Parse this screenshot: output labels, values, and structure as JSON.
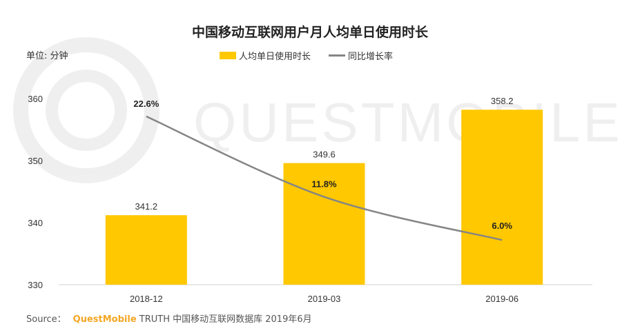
{
  "chart_data": {
    "type": "bar+line",
    "title": "中国移动互联网用户月人均单日使用时长",
    "ylabel": "单位: 分钟",
    "categories": [
      "2018-12",
      "2019-03",
      "2019-06"
    ],
    "ylim": [
      330,
      360
    ],
    "yticks": [
      330,
      340,
      350,
      360
    ],
    "series": [
      {
        "name": "人均单日使用时长",
        "type": "bar",
        "color": "#FFC800",
        "values": [
          341.2,
          349.6,
          358.2
        ],
        "labels": [
          "341.2",
          "349.6",
          "358.2"
        ]
      },
      {
        "name": "同比增长率",
        "type": "line",
        "color": "#858585",
        "axis": "secondary",
        "values": [
          22.6,
          11.8,
          6.0
        ],
        "labels": [
          "22.6%",
          "11.8%",
          "6.0%"
        ]
      }
    ],
    "secondary_ylim": [
      0,
      25
    ],
    "legend": "top-center",
    "grid": false
  },
  "watermark": "QUESTMOBILE",
  "source": {
    "label": "Source：",
    "brand": "QuestMobile",
    "text": "TRUTH 中国移动互联网数据库 2019年6月"
  }
}
